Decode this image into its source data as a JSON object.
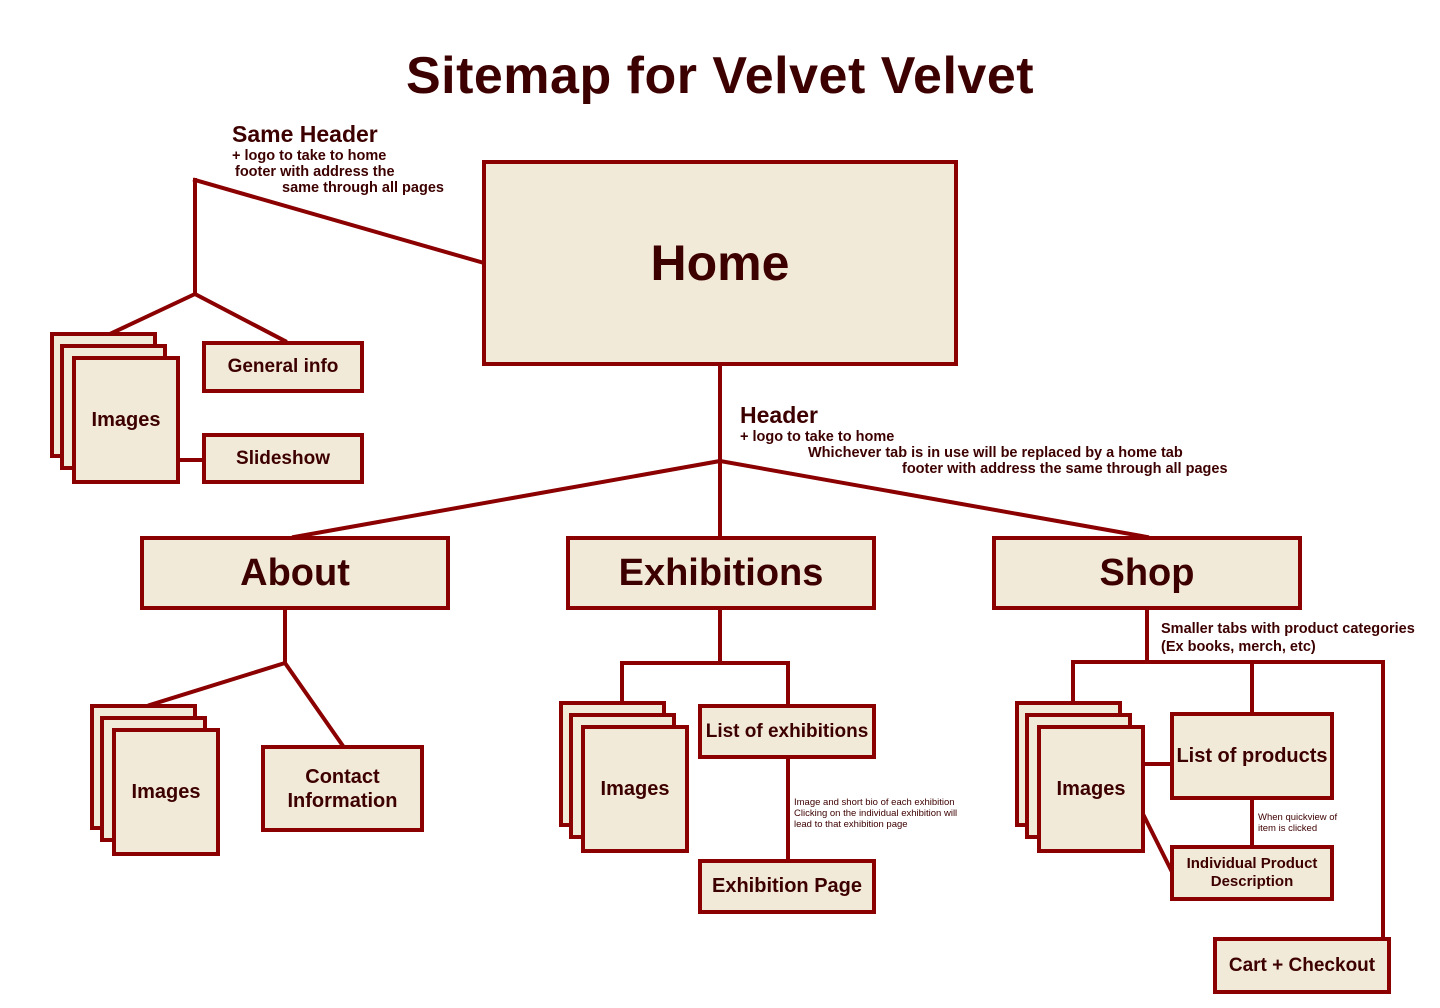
{
  "title": "Sitemap for Velvet Velvet",
  "colors": {
    "stroke": "#8b0000",
    "fill": "#f2ead9",
    "text": "#3d0000"
  },
  "nodes": {
    "home": "Home",
    "about": "About",
    "exhibitions": "Exhibitions",
    "shop": "Shop",
    "general_info": "General info",
    "slideshow": "Slideshow",
    "home_images": "Images",
    "about_images": "Images",
    "contact": [
      "Contact",
      "Information"
    ],
    "exhibitions_images": "Images",
    "list_of_exhibitions": "List of exhibitions",
    "exhibition_page": "Exhibition Page",
    "shop_images": "Images",
    "list_of_products": "List of products",
    "individual_product": [
      "Individual Product",
      "Description"
    ],
    "cart_checkout": "Cart + Checkout"
  },
  "notes": {
    "same_header": {
      "heading": "Same Header",
      "lines": [
        "+ logo to take to home",
        "footer with address the",
        "same through all pages"
      ]
    },
    "header": {
      "heading": "Header",
      "lines": [
        "+ logo to take to home",
        "Whichever tab is in use will be replaced by a home tab",
        "footer with address the same through all pages"
      ]
    },
    "shop_tabs": {
      "lines": [
        "Smaller tabs with product categories",
        "(Ex books, merch, etc)"
      ]
    },
    "exhibition_link": {
      "lines": [
        "Image and short bio of each exhibition",
        "Clicking on the individual exhibition will",
        "lead to that exhibition page"
      ]
    },
    "quickview": {
      "lines": [
        "When quickview of",
        "item is clicked"
      ]
    }
  }
}
